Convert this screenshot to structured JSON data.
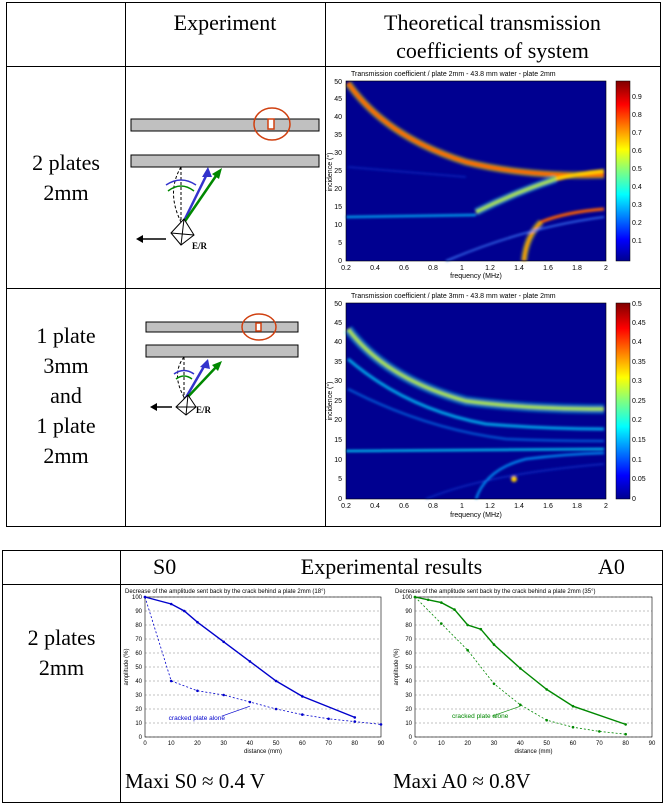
{
  "table1": {
    "headers": [
      "Experiment",
      "Theoretical transmission",
      "coefficients of system"
    ],
    "rows": [
      {
        "label_lines": [
          "2 plates",
          "2mm"
        ],
        "transducer_label": "E/R",
        "plot_title": "Transmission coefficient / plate 2mm - 43.8 mm water - plate 2mm",
        "xlabel": "frequency (MHz)",
        "ylabel": "incidence (°)",
        "xticks": [
          "0.2",
          "0.4",
          "0.6",
          "0.8",
          "1",
          "1.2",
          "1.4",
          "1.6",
          "1.8",
          "2"
        ],
        "yticks": [
          "0",
          "5",
          "10",
          "15",
          "20",
          "25",
          "30",
          "35",
          "40",
          "45",
          "50"
        ],
        "cbar_ticks": [
          "0.9",
          "0.8",
          "0.7",
          "0.6",
          "0.5",
          "0.4",
          "0.3",
          "0.2",
          "0.1"
        ]
      },
      {
        "label_lines": [
          "1 plate",
          "3mm",
          "and",
          "1 plate",
          "2mm"
        ],
        "transducer_label": "E/R",
        "plot_title": "Transmission coefficient / plate 3mm - 43.8 mm water - plate 2mm",
        "xlabel": "frequency (MHz)",
        "ylabel": "incidence (°)",
        "xticks": [
          "0.2",
          "0.4",
          "0.6",
          "0.8",
          "1",
          "1.2",
          "1.4",
          "1.6",
          "1.8",
          "2"
        ],
        "yticks": [
          "0",
          "5",
          "10",
          "15",
          "20",
          "25",
          "30",
          "35",
          "40",
          "45",
          "50"
        ],
        "cbar_ticks": [
          "0.5",
          "0.45",
          "0.4",
          "0.35",
          "0.3",
          "0.25",
          "0.2",
          "0.15",
          "0.1",
          "0.05",
          "0"
        ]
      }
    ]
  },
  "table2": {
    "header_s0": "S0",
    "header_mid": "Experimental results",
    "header_a0": "A0",
    "row_label_lines": [
      "2 plates",
      "2mm"
    ],
    "maxi_s0": "Maxi S0 ≈ 0.4 V",
    "maxi_a0": "Maxi A0 ≈  0.8V"
  },
  "chart_data": [
    {
      "type": "line",
      "title": "Decrease of the amplitude sent back by the crack behind a plate 2mm (18°)",
      "xlabel": "distance (mm)",
      "ylabel": "amplitude (%)",
      "xlim": [
        0,
        90
      ],
      "ylim": [
        0,
        100
      ],
      "xticks": [
        "0",
        "10",
        "20",
        "30",
        "40",
        "50",
        "60",
        "70",
        "80",
        "90"
      ],
      "yticks": [
        "0",
        "10",
        "20",
        "30",
        "40",
        "50",
        "60",
        "70",
        "80",
        "90",
        "100"
      ],
      "color": "#0000cc",
      "annotation": "cracked plate alone",
      "series": [
        {
          "style": "solid",
          "x": [
            0,
            10,
            15,
            20,
            30,
            40,
            50,
            60,
            80
          ],
          "y": [
            100,
            95,
            90,
            82,
            68,
            54,
            40,
            29,
            14
          ]
        },
        {
          "style": "dashed",
          "x": [
            0,
            10,
            20,
            30,
            40,
            50,
            60,
            70,
            80,
            90
          ],
          "y": [
            100,
            40,
            33,
            30,
            25,
            20,
            16,
            13,
            11,
            9
          ]
        }
      ]
    },
    {
      "type": "line",
      "title": "Decrease of the amplitude sent back by the crack behind a plate 2mm (35°)",
      "xlabel": "distance (mm)",
      "ylabel": "amplitude (%)",
      "xlim": [
        0,
        90
      ],
      "ylim": [
        0,
        100
      ],
      "xticks": [
        "0",
        "10",
        "20",
        "30",
        "40",
        "50",
        "60",
        "70",
        "80",
        "90"
      ],
      "yticks": [
        "0",
        "10",
        "20",
        "30",
        "40",
        "50",
        "60",
        "70",
        "80",
        "90",
        "100"
      ],
      "color": "#008800",
      "annotation": "cracked plate alone",
      "series": [
        {
          "style": "solid",
          "x": [
            0,
            5,
            10,
            15,
            20,
            25,
            30,
            40,
            50,
            60,
            80
          ],
          "y": [
            100,
            98,
            96,
            91,
            80,
            77,
            66,
            49,
            34,
            22,
            9
          ]
        },
        {
          "style": "dashed",
          "x": [
            0,
            10,
            20,
            30,
            40,
            50,
            60,
            70,
            80
          ],
          "y": [
            100,
            81,
            62,
            38,
            23,
            12,
            7,
            4,
            2
          ]
        }
      ]
    }
  ]
}
